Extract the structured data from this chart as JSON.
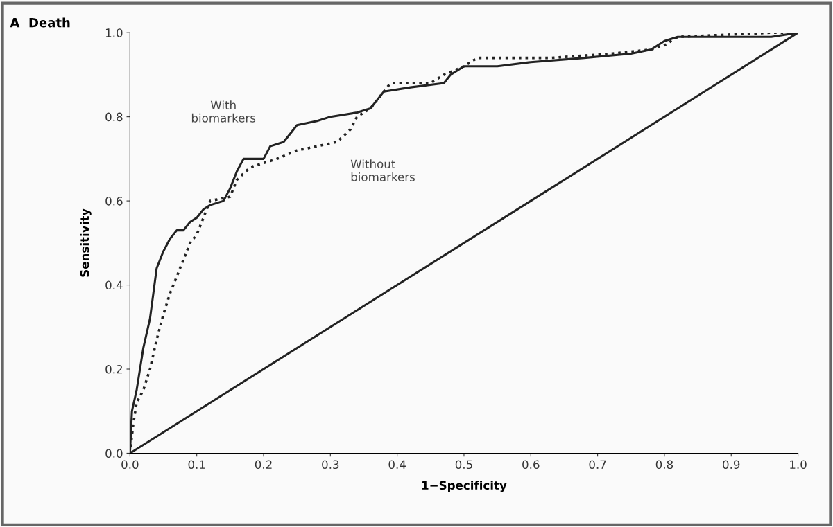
{
  "chart_data": {
    "type": "line",
    "title": "A  Death",
    "xlabel": "1−Specificity",
    "ylabel": "Sensitivity",
    "xlim": [
      0,
      1
    ],
    "ylim": [
      0,
      1
    ],
    "xticks": [
      {
        "value": 0,
        "label": "0.0"
      },
      {
        "value": 0.1,
        "label": "0.1"
      },
      {
        "value": 0.2,
        "label": "0.2"
      },
      {
        "value": 0.3,
        "label": "0.3"
      },
      {
        "value": 0.4,
        "label": "0.4"
      },
      {
        "value": 0.5,
        "label": "0.5"
      },
      {
        "value": 0.6,
        "label": "0.6"
      },
      {
        "value": 0.7,
        "label": "0.7"
      },
      {
        "value": 0.8,
        "label": "0.8"
      },
      {
        "value": 0.9,
        "label": "0.9"
      },
      {
        "value": 1,
        "label": "1.0"
      }
    ],
    "yticks": [
      {
        "value": 0,
        "label": "0.0"
      },
      {
        "value": 0.2,
        "label": "0.2"
      },
      {
        "value": 0.4,
        "label": "0.4"
      },
      {
        "value": 0.6,
        "label": "0.6"
      },
      {
        "value": 0.8,
        "label": "0.8"
      },
      {
        "value": 1,
        "label": "1.0"
      }
    ],
    "grid": false,
    "legend": false,
    "series": [
      {
        "name": "With\nbiomarkers",
        "color": "#222222",
        "line_style": "solid",
        "x": [
          0,
          0.003,
          0.01,
          0.02,
          0.03,
          0.035,
          0.04,
          0.05,
          0.06,
          0.07,
          0.08,
          0.09,
          0.1,
          0.11,
          0.12,
          0.14,
          0.15,
          0.16,
          0.17,
          0.2,
          0.21,
          0.23,
          0.24,
          0.25,
          0.28,
          0.3,
          0.34,
          0.36,
          0.37,
          0.38,
          0.42,
          0.47,
          0.48,
          0.5,
          0.55,
          0.6,
          0.68,
          0.75,
          0.78,
          0.8,
          0.82,
          0.96,
          1.0
        ],
        "values": [
          0,
          0.1,
          0.15,
          0.25,
          0.32,
          0.38,
          0.44,
          0.48,
          0.51,
          0.53,
          0.53,
          0.55,
          0.56,
          0.58,
          0.59,
          0.6,
          0.63,
          0.67,
          0.7,
          0.7,
          0.73,
          0.74,
          0.76,
          0.78,
          0.79,
          0.8,
          0.81,
          0.82,
          0.84,
          0.86,
          0.87,
          0.88,
          0.9,
          0.92,
          0.92,
          0.93,
          0.94,
          0.95,
          0.96,
          0.98,
          0.99,
          0.99,
          1.0
        ]
      },
      {
        "name": "Without\nbiomarkers",
        "color": "#222222",
        "line_style": "dotted",
        "x": [
          0,
          0.005,
          0.01,
          0.02,
          0.03,
          0.04,
          0.05,
          0.06,
          0.07,
          0.08,
          0.09,
          0.1,
          0.11,
          0.12,
          0.15,
          0.16,
          0.18,
          0.2,
          0.22,
          0.25,
          0.28,
          0.31,
          0.33,
          0.34,
          0.36,
          0.38,
          0.39,
          0.45,
          0.47,
          0.5,
          0.52,
          0.63,
          0.72,
          0.78,
          0.8,
          0.82,
          0.96,
          1.0
        ],
        "values": [
          0,
          0.07,
          0.12,
          0.15,
          0.2,
          0.27,
          0.33,
          0.38,
          0.42,
          0.46,
          0.5,
          0.52,
          0.56,
          0.6,
          0.61,
          0.65,
          0.68,
          0.69,
          0.7,
          0.72,
          0.73,
          0.74,
          0.77,
          0.8,
          0.82,
          0.86,
          0.88,
          0.88,
          0.9,
          0.92,
          0.94,
          0.94,
          0.95,
          0.96,
          0.97,
          0.99,
          1.0,
          1.0
        ]
      },
      {
        "color": "#222222",
        "line_style": "solid",
        "x": [
          0,
          1
        ],
        "values": [
          0,
          1
        ]
      }
    ]
  }
}
